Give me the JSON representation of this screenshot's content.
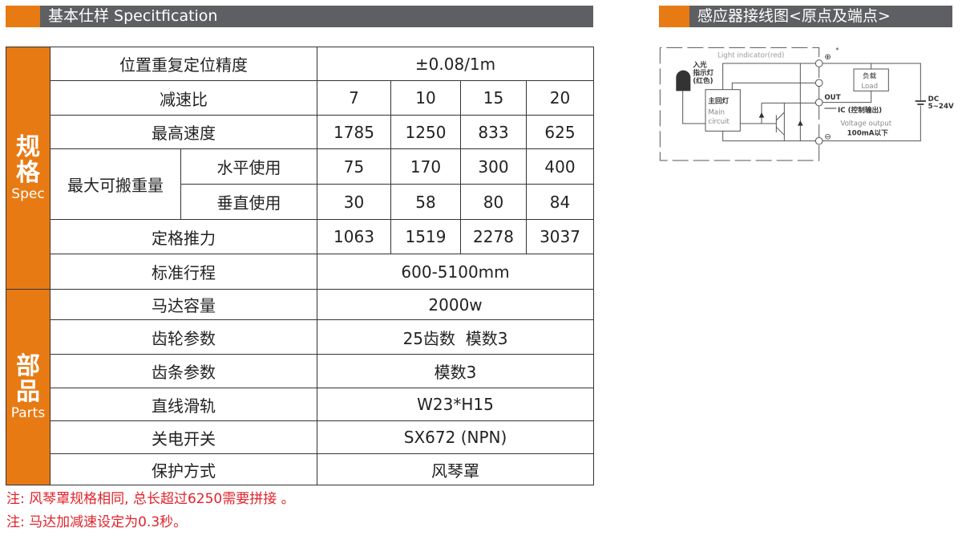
{
  "spec_header": {
    "title": "基本仕样 Specitfication"
  },
  "diagram_header": {
    "title": "感应器接线图<原点及端点>"
  },
  "colors": {
    "accent": "#e87a14",
    "header_gray": "#5e5f63",
    "note_red": "#e0232b"
  },
  "spec_group": {
    "label_cn": "规格",
    "label_en": "Spec"
  },
  "parts_group": {
    "label_cn": "部品",
    "label_en": "Parts"
  },
  "rows": {
    "accuracy": {
      "label": "位置重复定位精度",
      "value": "±0.08/1m"
    },
    "ratio": {
      "label": "减速比",
      "values": [
        "7",
        "10",
        "15",
        "20"
      ]
    },
    "speed": {
      "label": "最高速度",
      "values": [
        "1785",
        "1250",
        "833",
        "625"
      ]
    },
    "payload": {
      "label": "最大可搬重量",
      "horizontal": {
        "label": "水平使用",
        "values": [
          "75",
          "170",
          "300",
          "400"
        ]
      },
      "vertical": {
        "label": "垂直使用",
        "values": [
          "30",
          "58",
          "80",
          "84"
        ]
      }
    },
    "thrust": {
      "label": "定格推力",
      "values": [
        "1063",
        "1519",
        "2278",
        "3037"
      ]
    },
    "stroke": {
      "label": "标准行程",
      "value": "600-5100mm"
    },
    "motor": {
      "label": "马达容量",
      "value": "2000w"
    },
    "gear": {
      "label": "齿轮参数",
      "value": "25齿数  模数3"
    },
    "rack": {
      "label": "齿条参数",
      "value": "模数3"
    },
    "rail": {
      "label": "直线滑轨",
      "value": "W23*H15"
    },
    "switch": {
      "label": "关电开关",
      "value": "SX672 (NPN)"
    },
    "protection": {
      "label": "保护方式",
      "value": "风琴罩"
    }
  },
  "notes": [
    "注: 风琴罩规格相同, 总长超过6250需要拼接 。",
    "注: 马达加减速设定为0.3秒。"
  ],
  "diagram": {
    "light_indicator": "Light indicator(red)",
    "light_in": "入光",
    "indicator_cn": "指示灯",
    "red_cn": "(红色)",
    "main_cn": "主回灯",
    "main_en1": "Main",
    "main_en2": "circuit",
    "load_cn": "负载",
    "load_en": "Load",
    "out": "OUT",
    "ic": "IC (控制输出)",
    "voltage_output": "Voltage output",
    "current": "100mA以下",
    "dc": "DC",
    "dc_range": "5~24V",
    "plus": "⊕",
    "minus": "⊖",
    "star": "*"
  }
}
